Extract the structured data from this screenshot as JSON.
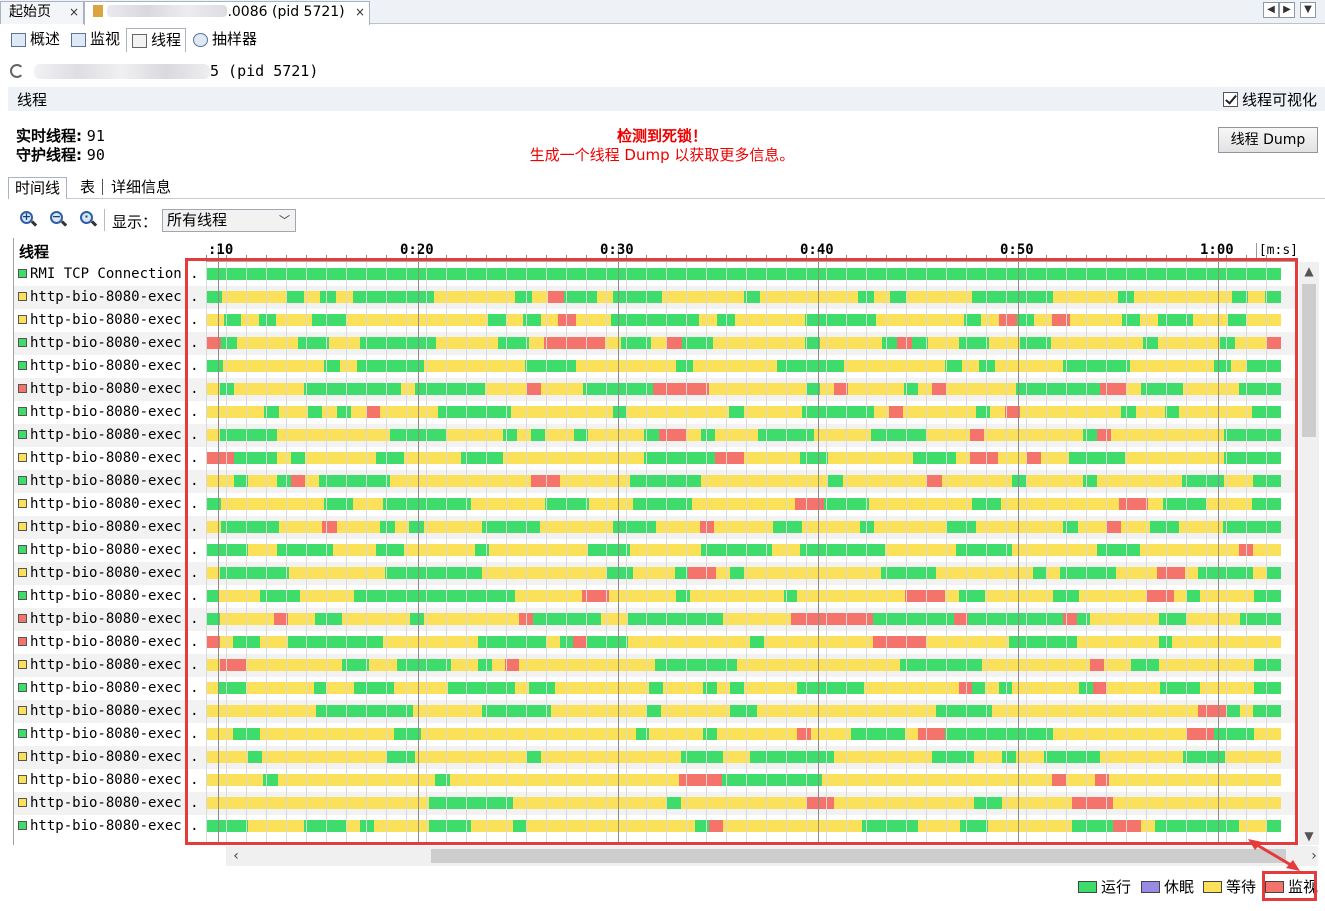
{
  "doc_tabs": {
    "start_page": "起始页",
    "process_tab": ".0086 (pid 5721)",
    "close": "×"
  },
  "sub_tabs": [
    "概述",
    "监视",
    "线程",
    "抽样器"
  ],
  "process": {
    "title": "5 (pid 5721)"
  },
  "section": {
    "title": "线程",
    "visualize_label": "线程可视化",
    "visualize_checked": true
  },
  "stats": {
    "live_label": "实时线程",
    "live_value": "91",
    "daemon_label": "守护线程",
    "daemon_value": "90"
  },
  "alert": {
    "title": "检测到死锁！",
    "message": "生成一个线程 Dump 以获取更多信息。",
    "color": "#e00000"
  },
  "dump_button": "线程 Dump",
  "view_tabs": {
    "timeline": "时间线",
    "table": "表",
    "details": "详细信息"
  },
  "toolbar": {
    "zoom_in": "zoom-in-icon",
    "zoom_out": "zoom-out-icon",
    "zoom_fit": "zoom-fit-icon",
    "show_label": "显示：",
    "show_value": "所有线程"
  },
  "grid": {
    "name_header": "线程",
    "time_labels": [
      ":10",
      "0:20",
      "0:30",
      "0:40",
      "0:50",
      "1:00"
    ],
    "units": "[m:s]"
  },
  "colors": {
    "running": "#3ddc6b",
    "sleeping": "#9a8ae6",
    "waiting": "#fbe15a",
    "monitor": "#f4736a",
    "highlight": "#e63b3b"
  },
  "legend": {
    "running": "运行",
    "sleeping": "休眠",
    "waiting": "等待",
    "monitor": "监视"
  },
  "threads": [
    {
      "name": "RMI TCP Connection..",
      "state": "running",
      "segs": "G"
    },
    {
      "name": "http-bio-8080-exec..",
      "state": "waiting",
      "segs": "GYYYYGYGYGGGGGYYYYYGYRGGYGGGYYYYYGYYYYYYGYGYYYYGGGGGYYYYGYYYYYYGYG"
    },
    {
      "name": "http-bio-8080-exec..",
      "state": "waiting",
      "segs": "YGYGYYGGYYYYYYYYGYGYRYYGGGGGYGYYYYGGGGYYYYYGYRGYRYYYGYGGYYGYY"
    },
    {
      "name": "http-bio-8080-exec..",
      "state": "running",
      "segs": "RGYYYYGGYYGGGGGYYYYGGYRRRRYGGYRGGYYYYYYGYYYYGRGYYGGYYGGYYYYYYGYYYYGYYR"
    },
    {
      "name": "http-bio-8080-exec..",
      "state": "running",
      "segs": "GYYYYYYGYGGGGYYYYYYGGGYYYYYYGYYYYYGGGGYYYYYYGYGYYYYGGGGYYYYYGYGG"
    },
    {
      "name": "http-bio-8080-exec..",
      "state": "monitor",
      "segs": "YGYYYYYGGGGGGGYGGGGGYYYRYYYGGGGGRRRRYYYYYYYGYRYYYYGYRYYYYYGGGGGGRRYGGGYYYYGGG"
    },
    {
      "name": "http-bio-8080-exec..",
      "state": "running",
      "segs": "YYYYGYYGYGYRYYYYGGGGGYYYYYYYGYYYYYYYGYYYYGGGGGYRYYYYYGYRYYYYYYYGYYGYYYYYGG"
    },
    {
      "name": "http-bio-8080-exec..",
      "state": "running",
      "segs": "YGGGGYYYYYYYYGGGGYYYYGYGYYGYYYYGRRYGYYYGGGGYYYYGGGGYYYRYYYYYYYGRYYYYYYYYGGGG"
    },
    {
      "name": "http-bio-8080-exec..",
      "state": "waiting",
      "segs": "RRGGGYGYYYYYGGYYYYGGGYYYYYYYYYYGGGGGRRYYYYGGYYYYYYGGGYRRYYRYYGGGGYYYYYYYGGGG"
    },
    {
      "name": "http-bio-8080-exec..",
      "state": "running",
      "segs": "YYGYYGRYGGGGGYYYYYYYYYYRRYYYYYGGGGGYYYYYYYYYGYYYYYYRYYYYYGYYYYGYYYYYYGGGYYGG"
    },
    {
      "name": "http-bio-8080-exec..",
      "state": "waiting",
      "segs": "GYYYYYYYGGYYGGGGGGYYYYYGGGYYYGGGGYYYYYYYRRGGGYYYYYYYGGYYYYYYYYRRYGGGYYYGG"
    },
    {
      "name": "http-bio-8080-exec..",
      "state": "waiting",
      "segs": "YGGGGYYYRYYYGYGYYYYGGGGYYYYYGGGYYYRYYYYGGYYYYGYYYYYGGYYYYYYGYYRYYGGYYYGGGG"
    },
    {
      "name": "http-bio-8080-exec..",
      "state": "running",
      "segs": "GGGYYGGGGYYYGGYYYYYGYYYYYYYGGGYYYYYGGGGGYYGGGGGGYYYYYGGGGYYYYYYGGGYYYYYYYRYY"
    },
    {
      "name": "http-bio-8080-exec..",
      "state": "waiting",
      "segs": "YGGGGGYYYYYYYGGGGGGGYYYYYYYYYGGYYYGRRYGYYYYYYYYYYGGGGYYYYYYYGYGGGGYYYRRYGGGGYG"
    },
    {
      "name": "http-bio-8080-exec..",
      "state": "running",
      "segs": "GYYYGGGYYYYGGGGGGGGGGGGYYYYYRRYYYYYGYYYYYYYGYYYYYYYYRRRYGGYYYYYGGYYYYYRRYGYYYYGG"
    },
    {
      "name": "http-bio-8080-exec..",
      "state": "monitor",
      "segs": "GYYYYRYYGGYYYYYGYYYYYYYRGGGGGYYGGGGGGGYYYYYRRRRRRGGGGGGRGGGGGGGRGYYYYYGGYYYYGGG"
    },
    {
      "name": "http-bio-8080-exec..",
      "state": "monitor",
      "segs": "RYGGYYGGGGGGGYYYYYYYGGGGGYGRGGGYYYYYYYYYGYYYYYYYYRRRRYYYYYYGGGGGYYYYYYGYYYYYYYY"
    },
    {
      "name": "http-bio-8080-exec..",
      "state": "waiting",
      "segs": "YRRYYYYYYYGGYYGGGGYYGYRYYYYYYYYYYGGGGGGYYYYYYYYYYYYGGGGGGYYYYYYYYRYYGGYYYYYYYGG"
    },
    {
      "name": "http-bio-8080-exec..",
      "state": "running",
      "segs": "YGGYYYYYGYYGGGYYYYGGGGGYGGYYYYYYYGYYYGYGYYYYGGGGGYYYYYYYRGYGYYYYYGRYYYYGGGYYYYGG"
    },
    {
      "name": "http-bio-8080-exec..",
      "state": "waiting",
      "segs": "YYYYYYYYGGGGGGGYYYYYGGGGGYYYYYYYGYYYYYGGYYYYYYYYYYYYYGGGGYYYYYYYYYYYYYYYRRGYGG"
    },
    {
      "name": "http-bio-8080-exec..",
      "state": "running",
      "segs": "YYGGYYYYYYYYYYGGYYYYYYYYYYYYYYYYGYYYYGYYYYYYRYYYGGGGYRRGGGGGGGGYYYYYYYYYYRRGGGYY"
    },
    {
      "name": "http-bio-8080-exec..",
      "state": "waiting",
      "segs": "YYYGYYYYYYYYYGGYYYYYYYYGYYYYYYYYYYGGGYYGGGGGGYYYYYYYGGGYYGYYGGGGYYYYYYGGGYYYY"
    },
    {
      "name": "http-bio-8080-exec..",
      "state": "waiting",
      "segs": "YYYYGYYYYYYYYYYYGYYYYYYYYYYYYYYYYRRRGGGGGGGYYYYYYYYYYYYYYYYRYYRYYYYYYYYYYYY"
    },
    {
      "name": "http-bio-8080-exec..",
      "state": "waiting",
      "segs": "YYYYYYYYYYYYYYYYGGGGGGYYYYYYYYYYYGYYYYYYYYYRRYYYYYYYYYYGGYYYYYRRRYYYYYYYYYYYY"
    },
    {
      "name": "http-bio-8080-exec..",
      "state": "running",
      "segs": "GGGYYYYGGGYGYYYYGGGYYYGYYYYYYYYYYYYGRYYYYYYYYYYGGGGYYYGGYYYYYYGGGRRYGGGGGGYYG"
    }
  ]
}
